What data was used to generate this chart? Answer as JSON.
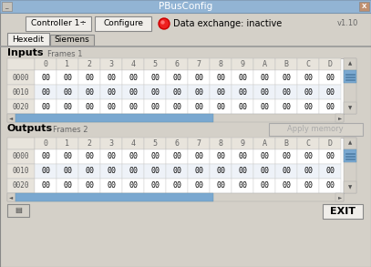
{
  "title": "PBusConfig",
  "version": "v1.10",
  "controller_label": "Controller 1÷",
  "configure_label": "Configure",
  "data_exchange_label": "Data exchange: inactive",
  "tab1": "Hexedit",
  "tab2": "Siemens",
  "inputs_label": "Inputs",
  "inputs_frames": "Frames 1",
  "outputs_label": "Outputs",
  "outputs_frames": "Frames 2",
  "apply_memory": "Apply memory",
  "exit_label": "EXIT",
  "hex_cols": [
    "0",
    "1",
    "2",
    "3",
    "4",
    "5",
    "6",
    "7",
    "8",
    "9",
    "A",
    "B",
    "C",
    "D"
  ],
  "hex_rows_in": [
    "0000",
    "0010",
    "0020"
  ],
  "hex_rows_out": [
    "0000",
    "0010",
    "0020"
  ],
  "bg_color": "#d4d0c8",
  "title_bar_color": "#92b4d4",
  "scrollbar_blue": "#7aa8d0",
  "button_bg": "#f0eeea",
  "tab_active_bg": "#f0eeea",
  "tab_inactive_bg": "#c8c4bc",
  "table_bg": "#ffffff",
  "table_header_bg": "#e8e4dc",
  "row_header_bg": "#e8e4dc",
  "cell_value": "00",
  "cell_color": "#000000",
  "header_color": "#666666",
  "apply_btn_bg": "#d8d4cc",
  "apply_btn_text": "#aaaaaa",
  "scroll_bg": "#d4d0c8"
}
